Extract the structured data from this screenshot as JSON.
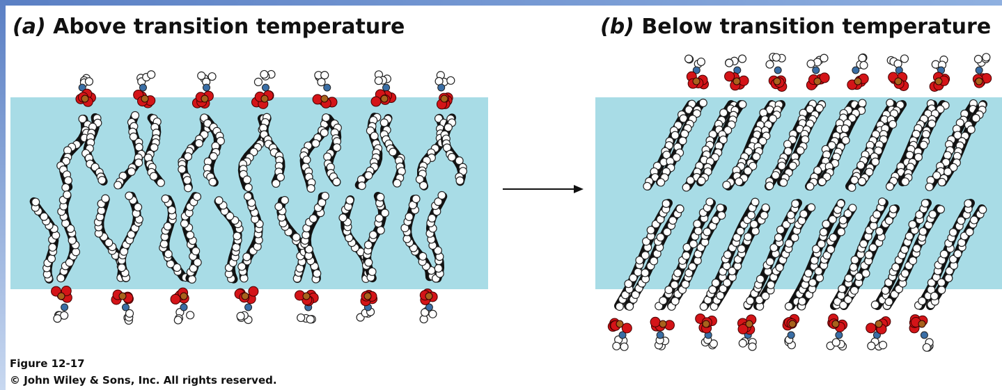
{
  "panel_a": {
    "label": "(a)",
    "title": "Above transition temperature"
  },
  "panel_b": {
    "label": "(b)",
    "title": "Below transition temperature"
  },
  "caption": {
    "figure": "Figure 12-17",
    "copyright": "© John Wiley & Sons, Inc. All rights reserved."
  }
}
